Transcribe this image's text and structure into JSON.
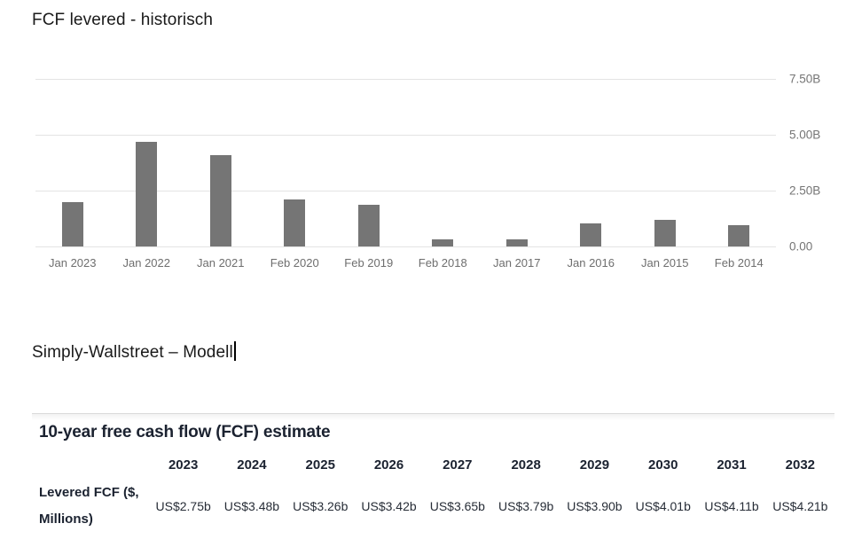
{
  "word_doc": {
    "heading": "FCF levered - historisch",
    "caption": "Simply-Wallstreet – Modell"
  },
  "chart_data": {
    "type": "bar",
    "title": "FCF levered - historisch",
    "categories": [
      "Jan 2023",
      "Jan 2022",
      "Jan 2021",
      "Feb 2020",
      "Feb 2019",
      "Feb 2018",
      "Jan 2017",
      "Jan 2016",
      "Jan 2015",
      "Feb 2014"
    ],
    "values": [
      2.0,
      4.7,
      4.1,
      2.1,
      1.85,
      0.3,
      0.3,
      1.05,
      1.2,
      0.95
    ],
    "unit": "B",
    "xlabel": "",
    "ylabel": "",
    "ylim": [
      0,
      7.5
    ],
    "y_ticks": [
      {
        "label": "7.50B",
        "value": 7.5
      },
      {
        "label": "5.00B",
        "value": 5.0
      },
      {
        "label": "2.50B",
        "value": 2.5
      },
      {
        "label": "0.00",
        "value": 0
      }
    ],
    "y_axis_position": "right",
    "grid": "horizontal",
    "legend_position": "none",
    "bar_color": "#757575",
    "gridline_color": "#e3e3e3",
    "axis_label_color": "#757575"
  },
  "table": {
    "title": "10-year free cash flow (FCF) estimate",
    "row_label": "Levered FCF ($, Millions)",
    "years": [
      "2023",
      "2024",
      "2025",
      "2026",
      "2027",
      "2028",
      "2029",
      "2030",
      "2031",
      "2032"
    ],
    "values": [
      "US$2.75b",
      "US$3.48b",
      "US$3.26b",
      "US$3.42b",
      "US$3.65b",
      "US$3.79b",
      "US$3.90b",
      "US$4.01b",
      "US$4.11b",
      "US$4.21b"
    ]
  }
}
